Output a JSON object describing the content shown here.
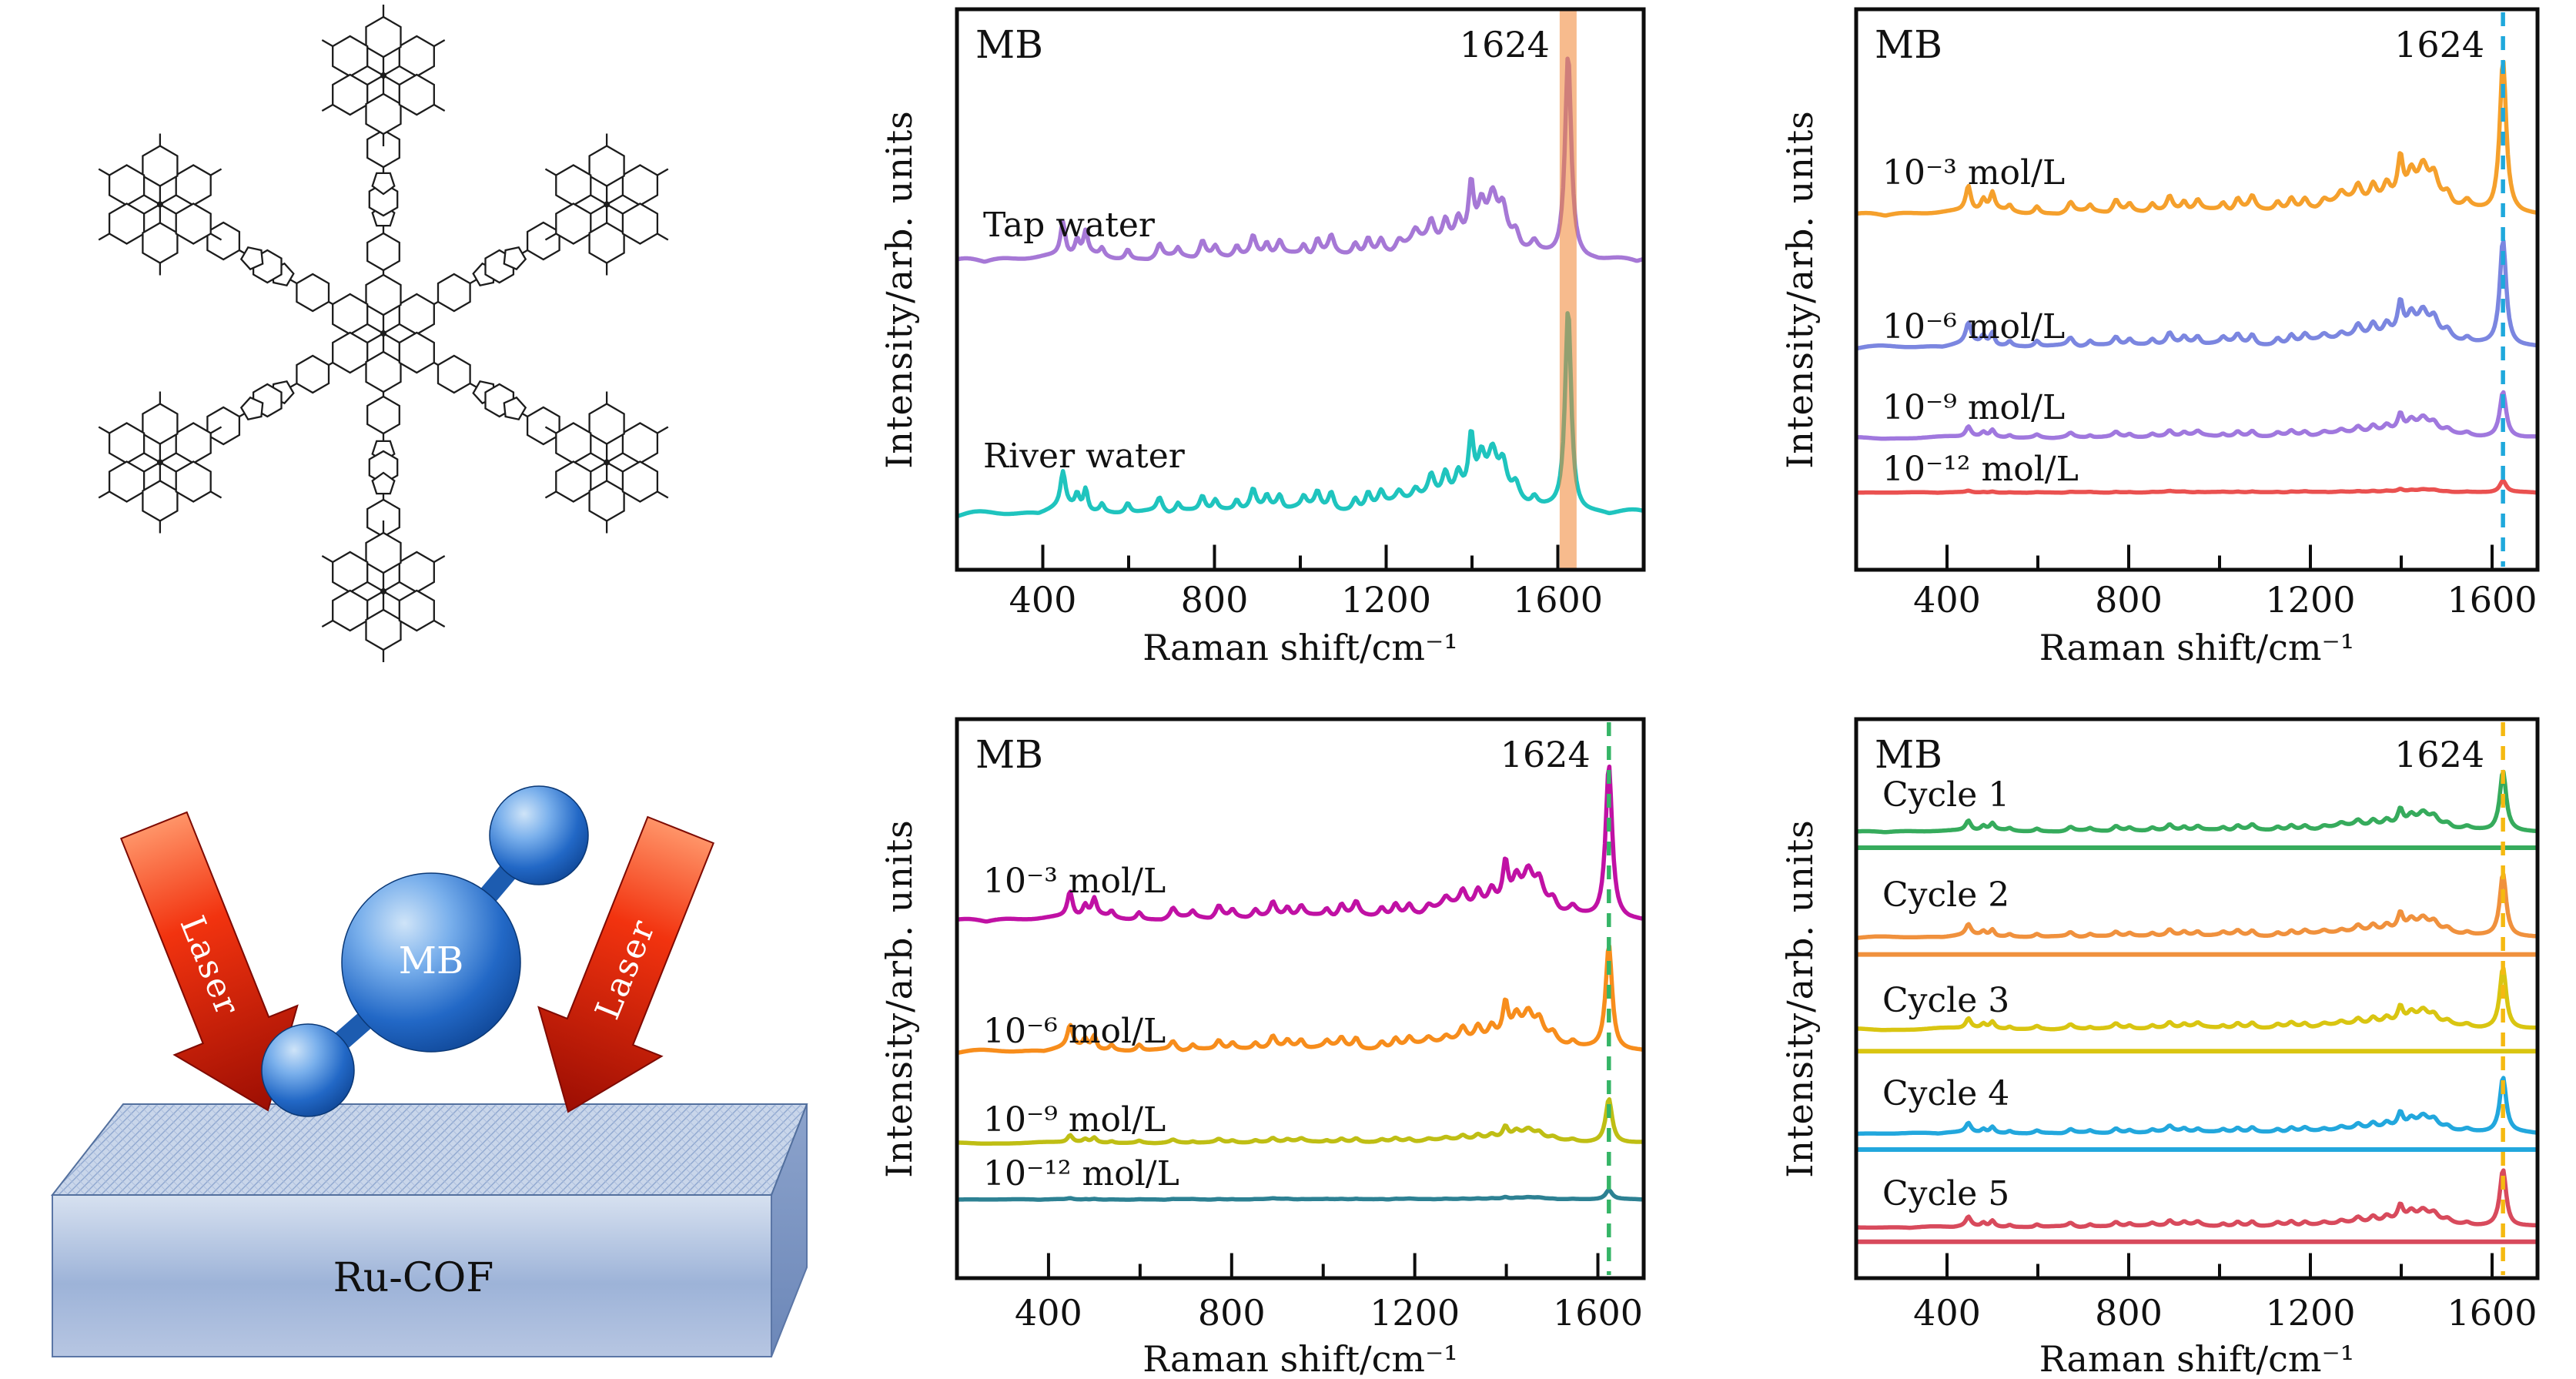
{
  "page": {
    "background": "#ffffff"
  },
  "illustration": {
    "molecule_label": "MB",
    "laser_label": "Laser",
    "substrate_label": "Ru-COF",
    "sphere_color": "#1b5fb8",
    "arrow_color": "#d81505",
    "substrate_top_color": "#c9d6ea"
  },
  "chart_data": {
    "type": "line",
    "xlabel": "Raman shift/cm⁻¹",
    "ylabel": "Intensity/arb. units",
    "x_major_ticks": [
      400,
      800,
      1200,
      1600
    ],
    "x_minor_ticks": [
      600,
      1000,
      1400
    ],
    "highlight_peak": 1624,
    "mb_main_peak": [
      1624,
      8.5,
      1.0
    ],
    "mb_sub_peaks": [
      [
        447,
        7,
        0.17
      ],
      [
        480,
        6,
        0.07
      ],
      [
        500,
        6,
        0.11
      ],
      [
        538,
        6,
        0.04
      ],
      [
        598,
        7,
        0.05
      ],
      [
        672,
        8,
        0.07
      ],
      [
        715,
        6,
        0.04
      ],
      [
        772,
        8,
        0.08
      ],
      [
        802,
        7,
        0.05
      ],
      [
        852,
        7,
        0.05
      ],
      [
        890,
        8,
        0.1
      ],
      [
        922,
        7,
        0.06
      ],
      [
        952,
        8,
        0.07
      ],
      [
        1008,
        7,
        0.05
      ],
      [
        1040,
        8,
        0.08
      ],
      [
        1072,
        8,
        0.09
      ],
      [
        1128,
        8,
        0.06
      ],
      [
        1158,
        8,
        0.08
      ],
      [
        1188,
        8,
        0.07
      ],
      [
        1230,
        9,
        0.05
      ],
      [
        1268,
        9,
        0.06
      ],
      [
        1305,
        9,
        0.11
      ],
      [
        1338,
        9,
        0.12
      ],
      [
        1368,
        9,
        0.11
      ],
      [
        1398,
        7,
        0.27
      ],
      [
        1422,
        10,
        0.16
      ],
      [
        1448,
        13,
        0.21
      ],
      [
        1472,
        11,
        0.16
      ],
      [
        1502,
        10,
        0.08
      ],
      [
        1545,
        9,
        0.05
      ]
    ],
    "mb_humps": [
      [
        1412,
        95,
        0.09
      ],
      [
        1275,
        60,
        0.04
      ],
      [
        905,
        150,
        0.025
      ],
      [
        455,
        90,
        0.02
      ]
    ],
    "panels": [
      {
        "id": "water-samples",
        "title": "MB",
        "peak_label": "1624",
        "x_range": [
          200,
          1800
        ],
        "marker": {
          "style": "band",
          "color": "#f08330",
          "opacity": 0.55
        },
        "traces": [
          {
            "label": "Tap water",
            "color": "#a678d6",
            "baseline": 0.455,
            "peak_height": 0.364,
            "detail": 1.0,
            "label_y": 0.386
          },
          {
            "label": "River water",
            "color": "#1fc4be",
            "baseline": 0.908,
            "peak_height": 0.364,
            "detail": 1.0,
            "label_y": 0.798
          }
        ]
      },
      {
        "id": "concentration-series-top",
        "title": "MB",
        "peak_label": "1624",
        "x_range": [
          200,
          1700
        ],
        "marker": {
          "style": "dashed",
          "color": "#1fa8dc"
        },
        "traces": [
          {
            "label": "10⁻³ mol/L",
            "color": "#f5a02c",
            "baseline": 0.372,
            "peak_height": 0.272,
            "detail": 1.0,
            "label_y": 0.293
          },
          {
            "label": "10⁻⁶ mol/L",
            "color": "#7b86e0",
            "baseline": 0.608,
            "peak_height": 0.19,
            "detail": 1.1,
            "label_y": 0.567
          },
          {
            "label": "10⁻⁹ mol/L",
            "color": "#a078de",
            "baseline": 0.769,
            "peak_height": 0.082,
            "detail": 1.4,
            "label_y": 0.711
          },
          {
            "label": "10⁻¹² mol/L",
            "color": "#ea5150",
            "baseline": 0.865,
            "peak_height": 0.021,
            "detail": 0.8,
            "label_y": 0.821
          }
        ]
      },
      {
        "id": "concentration-series-bottom",
        "title": "MB",
        "peak_label": "1624",
        "x_range": [
          200,
          1700
        ],
        "marker": {
          "style": "dashed",
          "color": "#35b566"
        },
        "traces": [
          {
            "label": "10⁻³ mol/L",
            "color": "#c011a4",
            "baseline": 0.366,
            "peak_height": 0.275,
            "detail": 1.0,
            "label_y": 0.291
          },
          {
            "label": "10⁻⁶ mol/L",
            "color": "#f78d1c",
            "baseline": 0.6,
            "peak_height": 0.189,
            "detail": 1.2,
            "label_y": 0.559
          },
          {
            "label": "10⁻⁹ mol/L",
            "color": "#bfbe14",
            "baseline": 0.762,
            "peak_height": 0.079,
            "detail": 1.0,
            "label_y": 0.718
          },
          {
            "label": "10⁻¹² mol/L",
            "color": "#2d8193",
            "baseline": 0.862,
            "peak_height": 0.017,
            "detail": 0.7,
            "label_y": 0.814
          }
        ]
      },
      {
        "id": "cycle-series",
        "title": "MB",
        "peak_label": "1624",
        "x_range": [
          200,
          1700
        ],
        "marker": {
          "style": "dashed",
          "color": "#f5b911"
        },
        "traces": [
          {
            "label": "Cycle 1",
            "color": "#36ab5c",
            "baseline": 0.205,
            "peak_height": 0.107,
            "detail": 1.0,
            "label_y": 0.136,
            "separator": 0.23
          },
          {
            "label": "Cycle 2",
            "color": "#f0913d",
            "baseline": 0.394,
            "peak_height": 0.113,
            "detail": 1.0,
            "label_y": 0.315,
            "separator": 0.421
          },
          {
            "label": "Cycle 3",
            "color": "#d9c511",
            "baseline": 0.559,
            "peak_height": 0.11,
            "detail": 1.0,
            "label_y": 0.504,
            "separator": 0.594
          },
          {
            "label": "Cycle 4",
            "color": "#22a7dd",
            "baseline": 0.745,
            "peak_height": 0.099,
            "detail": 1.0,
            "label_y": 0.671,
            "separator": 0.77
          },
          {
            "label": "Cycle 5",
            "color": "#d84a5c",
            "baseline": 0.913,
            "peak_height": 0.102,
            "detail": 1.0,
            "label_y": 0.85,
            "separator": 0.935
          }
        ]
      }
    ]
  }
}
